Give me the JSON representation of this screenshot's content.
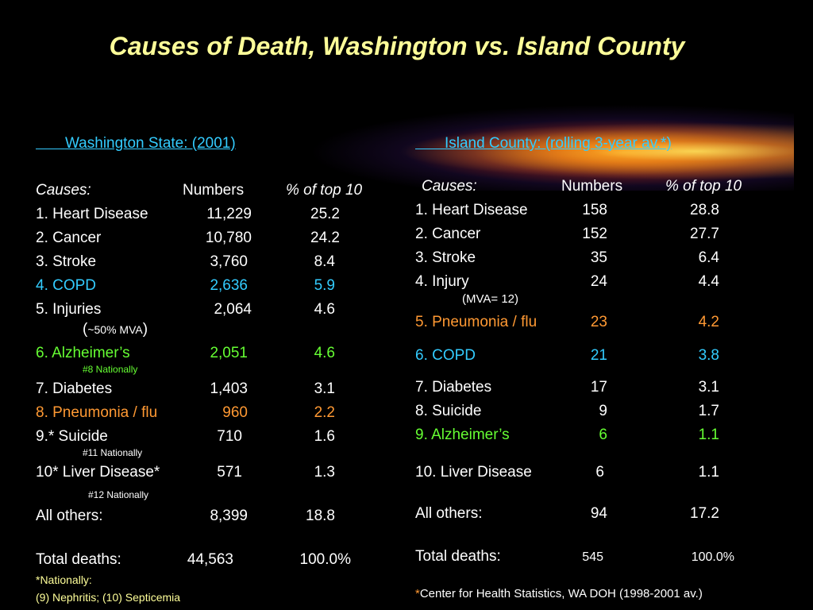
{
  "title": "Causes of Death, Washington vs. Island County",
  "washington": {
    "header": "Washington State: (2001)",
    "col_causes": "Causes:",
    "col_numbers": "Numbers",
    "col_pct": "% of top 10",
    "rows": [
      {
        "cause": "1.  Heart Disease",
        "number": "11,229",
        "pct": "25.2"
      },
      {
        "cause": "2.  Cancer",
        "number": "10,780",
        "pct": "24.2"
      },
      {
        "cause": "3.  Stroke",
        "number": "3,760",
        "pct": "8.4"
      },
      {
        "cause": "4.  COPD",
        "number": "2,636",
        "pct": "5.9"
      },
      {
        "cause": "5.  Injuries",
        "number": "2,064",
        "pct": "4.6"
      },
      {
        "cause": "6.  Alzheimer’s",
        "number": "2,051",
        "pct": "4.6"
      },
      {
        "cause": "7.  Diabetes",
        "number": "1,403",
        "pct": "3.1"
      },
      {
        "cause": "8.  Pneumonia / flu",
        "number": "960",
        "pct": "2.2"
      },
      {
        "cause": "9.* Suicide",
        "number": "710",
        "pct": "1.6"
      },
      {
        "cause": "10* Liver Disease*",
        "number": "571",
        "pct": "1.3"
      }
    ],
    "notes": {
      "mva_paren_open": "(",
      "mva": "~50% MVA",
      "mva_paren_close": ")",
      "alz": "#8 Nationally",
      "suicide": "#11 Nationally",
      "liver": "#12 Nationally"
    },
    "others": {
      "label": "All others:",
      "number": "8,399",
      "pct": "18.8"
    },
    "total": {
      "label": "Total deaths:",
      "number": "44,563",
      "pct": "100.0%"
    },
    "footnote1": "*Nationally:",
    "footnote2": "(9) Nephritis; (10) Septicemia"
  },
  "island": {
    "header": "Island County: (rolling 3-year av.*)",
    "col_causes": "Causes:",
    "col_numbers": "Numbers",
    "col_pct": "% of top 10",
    "rows": [
      {
        "cause": "1.  Heart Disease",
        "number": "158",
        "pct": "28.8"
      },
      {
        "cause": "2.  Cancer",
        "number": "152",
        "pct": "27.7"
      },
      {
        "cause": "3.  Stroke",
        "number": "35",
        "pct": "6.4"
      },
      {
        "cause": "4.  Injury",
        "number": "24",
        "pct": "4.4"
      },
      {
        "cause": "5.  Pneumonia / flu",
        "number": "23",
        "pct": "4.2"
      },
      {
        "cause": "6.  COPD",
        "number": "21",
        "pct": "3.8"
      },
      {
        "cause": "7.  Diabetes",
        "number": "17",
        "pct": "3.1"
      },
      {
        "cause": "8.  Suicide",
        "number": "9",
        "pct": "1.7"
      },
      {
        "cause": "9.  Alzheimer’s",
        "number": "6",
        "pct": "1.1"
      },
      {
        "cause": "10. Liver Disease",
        "number": "6",
        "pct": "1.1"
      }
    ],
    "notes": {
      "injury": "(MVA= 12)"
    },
    "others": {
      "label": "All others:",
      "number": "94",
      "pct": "17.2"
    },
    "total": {
      "label": "Total deaths:",
      "number": "545",
      "pct": "100.0%"
    },
    "source_star": "*",
    "source": "Center for Health Statistics, WA DOH (1998-2001 av.)"
  }
}
